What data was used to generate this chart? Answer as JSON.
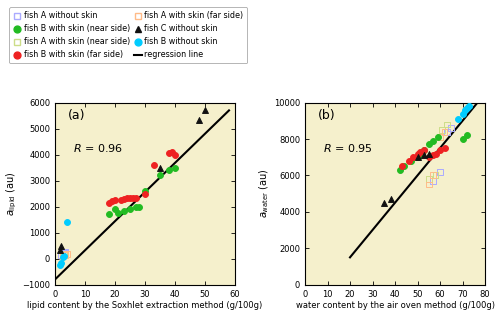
{
  "plot_a": {
    "title": "(a)",
    "xlabel": "lipid content by the Soxhlet extraction method (g/100g)",
    "ylabel_main": "a",
    "ylabel_sub": "lipid",
    "ylabel_unit": " (au)",
    "xlim": [
      0,
      60
    ],
    "ylim": [
      -1000,
      6000
    ],
    "xticks": [
      0,
      10,
      20,
      30,
      40,
      50,
      60
    ],
    "yticks": [
      -1000,
      0,
      1000,
      2000,
      3000,
      4000,
      5000,
      6000
    ],
    "R_text": "R = 0.96",
    "regression_line": [
      [
        0,
        58
      ],
      [
        -800,
        5700
      ]
    ],
    "fish_A_without_skin": {
      "x": [
        2,
        2.5,
        3,
        3.5
      ],
      "y": [
        150,
        180,
        220,
        250
      ],
      "color": "#aaaaff",
      "marker": "s"
    },
    "fish_A_near": {
      "x": [
        2.5,
        3,
        3.5
      ],
      "y": [
        100,
        150,
        200
      ],
      "color": "#ccdd88",
      "marker": "s"
    },
    "fish_A_far": {
      "x": [
        2.5,
        3.5,
        4
      ],
      "y": [
        100,
        150,
        180
      ],
      "color": "#ffbb88",
      "marker": "s"
    },
    "fish_B_without_skin": {
      "x": [
        1.5,
        2,
        2.5,
        3,
        4
      ],
      "y": [
        -250,
        -150,
        50,
        100,
        1400
      ],
      "color": "#00ccff",
      "marker": "o"
    },
    "fish_B_near": {
      "x": [
        18,
        20,
        21,
        23,
        25,
        27,
        28,
        30,
        35,
        38,
        40
      ],
      "y": [
        1700,
        1900,
        1750,
        1850,
        1900,
        2000,
        2000,
        2600,
        3200,
        3400,
        3500
      ],
      "color": "#22bb22",
      "marker": "o"
    },
    "fish_B_far": {
      "x": [
        18,
        19,
        20,
        22,
        23,
        24,
        25,
        26,
        27,
        30,
        33,
        38,
        39,
        40
      ],
      "y": [
        2150,
        2200,
        2250,
        2250,
        2300,
        2350,
        2350,
        2350,
        2350,
        2500,
        3600,
        4050,
        4100,
        4000
      ],
      "color": "#ee2222",
      "marker": "o"
    },
    "fish_C_without_skin": {
      "x": [
        1.5,
        2,
        35,
        48,
        50
      ],
      "y": [
        350,
        500,
        3500,
        5350,
        5700
      ],
      "color": "#111111",
      "marker": "^"
    }
  },
  "plot_b": {
    "title": "(b)",
    "xlabel": "water content by the air oven method (g/100g)",
    "ylabel_main": "a",
    "ylabel_sub": "water",
    "ylabel_unit": " (au)",
    "xlim": [
      0,
      80
    ],
    "ylim": [
      0,
      10000
    ],
    "xticks": [
      0,
      10,
      20,
      30,
      40,
      50,
      60,
      70,
      80
    ],
    "yticks": [
      0,
      2000,
      4000,
      6000,
      8000,
      10000
    ],
    "R_text": "R = 0.95",
    "regression_line": [
      [
        20,
        78
      ],
      [
        1500,
        10200
      ]
    ],
    "fish_A_without_skin": {
      "x": [
        57,
        60,
        63,
        65
      ],
      "y": [
        5700,
        6200,
        8400,
        8600
      ],
      "color": "#aaaaff",
      "marker": "s"
    },
    "fish_A_near": {
      "x": [
        55,
        58,
        61,
        63
      ],
      "y": [
        5800,
        6000,
        8500,
        8800
      ],
      "color": "#ccdd88",
      "marker": "s"
    },
    "fish_A_far": {
      "x": [
        55,
        57,
        60,
        62
      ],
      "y": [
        5500,
        6000,
        8100,
        8400
      ],
      "color": "#ffbb88",
      "marker": "s"
    },
    "fish_B_without_skin": {
      "x": [
        68,
        70,
        71,
        72,
        73
      ],
      "y": [
        9100,
        9400,
        9600,
        9700,
        9800
      ],
      "color": "#00ccff",
      "marker": "o"
    },
    "fish_B_near": {
      "x": [
        42,
        44,
        47,
        50,
        52,
        53,
        55,
        57,
        59,
        70,
        72
      ],
      "y": [
        6300,
        6500,
        6800,
        7000,
        7200,
        7400,
        7700,
        7900,
        8100,
        8000,
        8200
      ],
      "color": "#22bb22",
      "marker": "o"
    },
    "fish_B_far": {
      "x": [
        43,
        46,
        48,
        50,
        51,
        53,
        55,
        57,
        58,
        60,
        62
      ],
      "y": [
        6500,
        6800,
        7000,
        7200,
        7300,
        7400,
        7000,
        7100,
        7200,
        7400,
        7500
      ],
      "color": "#ee2222",
      "marker": "o"
    },
    "fish_C_without_skin": {
      "x": [
        35,
        38,
        50,
        53,
        55
      ],
      "y": [
        4500,
        4700,
        7000,
        7100,
        7200
      ],
      "color": "#111111",
      "marker": "^"
    }
  },
  "legend": [
    {
      "label": "fish A without skin",
      "color": "#aaaaff",
      "marker": "s",
      "filled": false
    },
    {
      "label": "fish B with skin (near side)",
      "color": "#22bb22",
      "marker": "o",
      "filled": true
    },
    {
      "label": "fish A with skin (near side)",
      "color": "#ccdd88",
      "marker": "s",
      "filled": false
    },
    {
      "label": "fish B with skin (far side)",
      "color": "#ee2222",
      "marker": "o",
      "filled": true
    },
    {
      "label": "fish A with skin (far side)",
      "color": "#ffbb88",
      "marker": "s",
      "filled": false
    },
    {
      "label": "fish C without skin",
      "color": "#111111",
      "marker": "^",
      "filled": true
    },
    {
      "label": "fish B without skin",
      "color": "#00ccff",
      "marker": "o",
      "filled": true
    },
    {
      "label": "regression line",
      "color": "#000000",
      "marker": null,
      "filled": true
    }
  ],
  "bg_color": "#f5f0cc",
  "fig_bg": "#ffffff",
  "marker_size": 18,
  "marker_lw": 0.7
}
